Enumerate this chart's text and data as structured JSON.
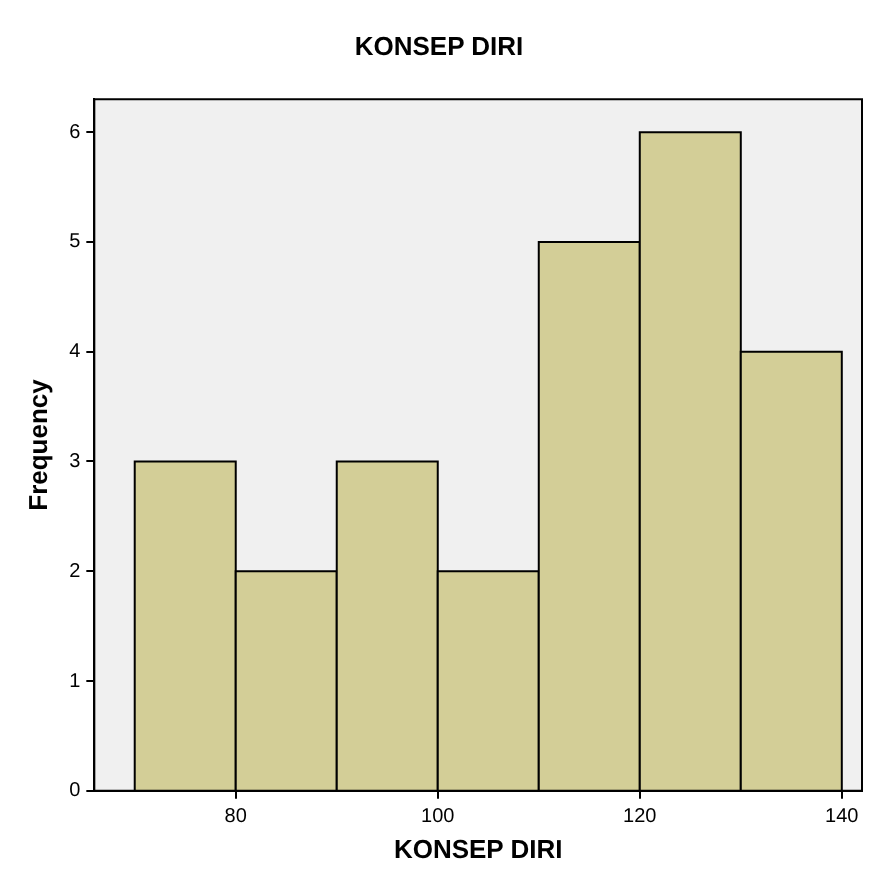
{
  "chart_data": {
    "type": "histogram",
    "title": "KONSEP DIRI",
    "xlabel": "KONSEP DIRI",
    "ylabel": "Frequency",
    "bins": [
      70,
      80,
      90,
      100,
      110,
      120,
      130,
      140
    ],
    "values": [
      3,
      2,
      3,
      2,
      5,
      6,
      4
    ],
    "color": "#d3ce97",
    "xlim": [
      66,
      142
    ],
    "xticks": [
      80,
      100,
      120,
      140
    ],
    "ylim": [
      0,
      6.3
    ],
    "yticks": [
      0,
      1,
      2,
      3,
      4,
      5,
      6
    ],
    "grid": false,
    "legend": false
  }
}
